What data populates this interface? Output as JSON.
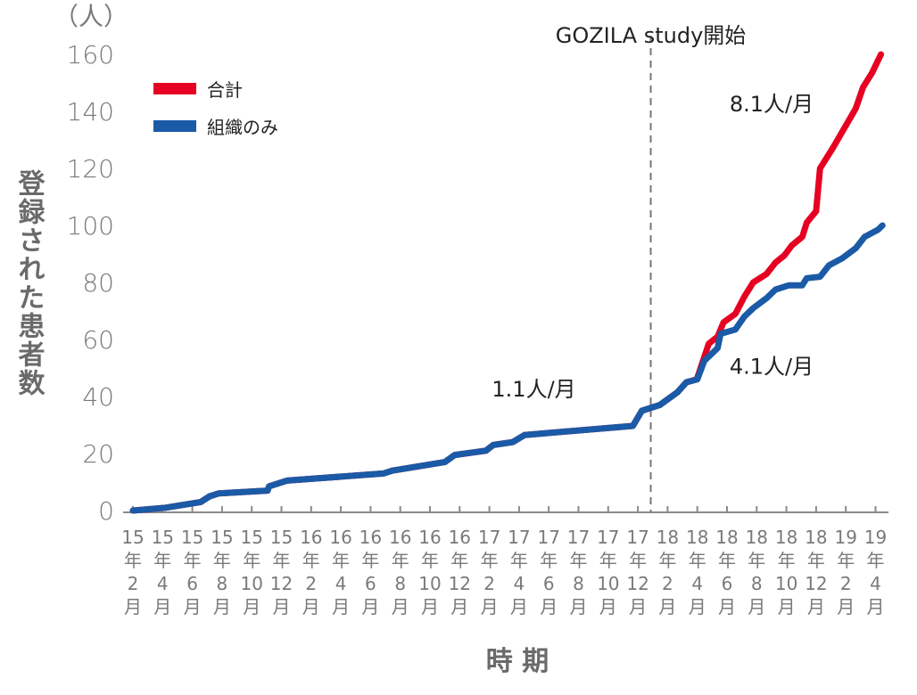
{
  "chart_data": {
    "type": "line",
    "ylabel": "登録された患者数",
    "yunit": "（人）",
    "xlabel": "時 期",
    "ylim": [
      0,
      160
    ],
    "yticks": [
      0,
      20,
      40,
      60,
      80,
      100,
      120,
      140,
      160
    ],
    "grid": false,
    "legend_position": "top-left",
    "xticks": [
      {
        "date": "2015-02",
        "label": [
          "15",
          "年",
          "2",
          "月"
        ]
      },
      {
        "date": "2015-04",
        "label": [
          "15",
          "年",
          "4",
          "月"
        ]
      },
      {
        "date": "2015-06",
        "label": [
          "15",
          "年",
          "6",
          "月"
        ]
      },
      {
        "date": "2015-08",
        "label": [
          "15",
          "年",
          "8",
          "月"
        ]
      },
      {
        "date": "2015-10",
        "label": [
          "15",
          "年",
          "10",
          "月"
        ]
      },
      {
        "date": "2015-12",
        "label": [
          "15",
          "年",
          "12",
          "月"
        ]
      },
      {
        "date": "2016-02",
        "label": [
          "16",
          "年",
          "2",
          "月"
        ]
      },
      {
        "date": "2016-04",
        "label": [
          "16",
          "年",
          "4",
          "月"
        ]
      },
      {
        "date": "2016-06",
        "label": [
          "16",
          "年",
          "6",
          "月"
        ]
      },
      {
        "date": "2016-08",
        "label": [
          "16",
          "年",
          "8",
          "月"
        ]
      },
      {
        "date": "2016-10",
        "label": [
          "16",
          "年",
          "10",
          "月"
        ]
      },
      {
        "date": "2016-12",
        "label": [
          "16",
          "年",
          "12",
          "月"
        ]
      },
      {
        "date": "2017-02",
        "label": [
          "17",
          "年",
          "2",
          "月"
        ]
      },
      {
        "date": "2017-04",
        "label": [
          "17",
          "年",
          "4",
          "月"
        ]
      },
      {
        "date": "2017-06",
        "label": [
          "17",
          "年",
          "6",
          "月"
        ]
      },
      {
        "date": "2017-08",
        "label": [
          "17",
          "年",
          "8",
          "月"
        ]
      },
      {
        "date": "2017-10",
        "label": [
          "17",
          "年",
          "10",
          "月"
        ]
      },
      {
        "date": "2017-12",
        "label": [
          "17",
          "年",
          "12",
          "月"
        ]
      },
      {
        "date": "2018-02",
        "label": [
          "18",
          "年",
          "2",
          "月"
        ]
      },
      {
        "date": "2018-04",
        "label": [
          "18",
          "年",
          "4",
          "月"
        ]
      },
      {
        "date": "2018-06",
        "label": [
          "18",
          "年",
          "6",
          "月"
        ]
      },
      {
        "date": "2018-08",
        "label": [
          "18",
          "年",
          "8",
          "月"
        ]
      },
      {
        "date": "2018-10",
        "label": [
          "18",
          "年",
          "10",
          "月"
        ]
      },
      {
        "date": "2018-12",
        "label": [
          "18",
          "年",
          "12",
          "月"
        ]
      },
      {
        "date": "2019-02",
        "label": [
          "19",
          "年",
          "2",
          "月"
        ]
      },
      {
        "date": "2019-04",
        "label": [
          "19",
          "年",
          "4",
          "月"
        ]
      }
    ],
    "series": [
      {
        "name": "合計",
        "color": "#e60021",
        "points": [
          [
            "2015-02-01",
            0
          ],
          [
            "2015-04-07",
            1
          ],
          [
            "2015-06-18",
            3
          ],
          [
            "2015-07-06",
            5
          ],
          [
            "2015-07-24",
            6
          ],
          [
            "2015-11-03",
            7
          ],
          [
            "2015-11-06",
            8.5
          ],
          [
            "2015-12-12",
            10.5
          ],
          [
            "2016-06-27",
            13
          ],
          [
            "2016-07-15",
            14
          ],
          [
            "2016-11-01",
            17
          ],
          [
            "2016-11-21",
            19.5
          ],
          [
            "2017-01-24",
            21
          ],
          [
            "2017-02-09",
            23
          ],
          [
            "2017-03-18",
            24
          ],
          [
            "2017-04-12",
            26.5
          ],
          [
            "2017-11-21",
            29.7
          ],
          [
            "2017-12-09",
            35
          ],
          [
            "2018-01-15",
            37
          ],
          [
            "2018-02-21",
            41.5
          ],
          [
            "2018-03-09",
            45
          ],
          [
            "2018-03-30",
            46
          ],
          [
            "2018-04-24",
            58.5
          ],
          [
            "2018-05-12",
            61
          ],
          [
            "2018-05-24",
            66
          ],
          [
            "2018-06-18",
            69
          ],
          [
            "2018-07-06",
            75
          ],
          [
            "2018-07-24",
            80
          ],
          [
            "2018-08-21",
            83
          ],
          [
            "2018-09-09",
            87
          ],
          [
            "2018-09-27",
            89.5
          ],
          [
            "2018-10-12",
            93
          ],
          [
            "2018-11-03",
            96
          ],
          [
            "2018-11-12",
            101
          ],
          [
            "2018-12-01",
            105
          ],
          [
            "2018-12-09",
            120
          ],
          [
            "2019-01-06",
            127.5
          ],
          [
            "2019-02-01",
            135
          ],
          [
            "2019-02-21",
            141
          ],
          [
            "2019-03-06",
            148.5
          ],
          [
            "2019-03-24",
            153.5
          ],
          [
            "2019-04-12",
            160
          ]
        ]
      },
      {
        "name": "組織のみ",
        "color": "#1a5aa6",
        "points": [
          [
            "2015-02-01",
            0
          ],
          [
            "2015-04-07",
            1
          ],
          [
            "2015-06-18",
            3
          ],
          [
            "2015-07-06",
            5
          ],
          [
            "2015-07-24",
            6
          ],
          [
            "2015-11-03",
            7
          ],
          [
            "2015-11-06",
            8.5
          ],
          [
            "2015-12-12",
            10.5
          ],
          [
            "2016-06-27",
            13
          ],
          [
            "2016-07-15",
            14
          ],
          [
            "2016-11-01",
            17
          ],
          [
            "2016-11-21",
            19.5
          ],
          [
            "2017-01-24",
            21
          ],
          [
            "2017-02-09",
            23
          ],
          [
            "2017-03-18",
            24
          ],
          [
            "2017-04-12",
            26.5
          ],
          [
            "2017-11-21",
            29.7
          ],
          [
            "2017-12-09",
            35
          ],
          [
            "2018-01-15",
            37
          ],
          [
            "2018-02-21",
            41.5
          ],
          [
            "2018-03-09",
            45
          ],
          [
            "2018-04-01",
            46
          ],
          [
            "2018-04-15",
            52.5
          ],
          [
            "2018-05-12",
            57
          ],
          [
            "2018-05-18",
            62
          ],
          [
            "2018-06-18",
            63.5
          ],
          [
            "2018-07-06",
            68
          ],
          [
            "2018-07-24",
            71
          ],
          [
            "2018-08-21",
            74.5
          ],
          [
            "2018-09-09",
            77.5
          ],
          [
            "2018-10-06",
            79
          ],
          [
            "2018-11-03",
            79
          ],
          [
            "2018-11-12",
            81.5
          ],
          [
            "2018-12-09",
            82
          ],
          [
            "2018-12-27",
            86
          ],
          [
            "2019-01-24",
            88.5
          ],
          [
            "2019-02-21",
            92
          ],
          [
            "2019-03-09",
            96
          ],
          [
            "2019-04-06",
            98.5
          ],
          [
            "2019-04-15",
            100
          ]
        ]
      }
    ],
    "annotations": {
      "vline": {
        "date": "2017-12-27",
        "label": "GOZILA study開始"
      },
      "rate_before": {
        "date": "2017-05-01",
        "value": 40,
        "label": "1.1人/月"
      },
      "rate_total": {
        "date": "2018-09-01",
        "value": 140,
        "label": "8.1人/月"
      },
      "rate_tissue": {
        "date": "2018-09-01",
        "value": 48,
        "label": "4.1人/月"
      }
    }
  }
}
